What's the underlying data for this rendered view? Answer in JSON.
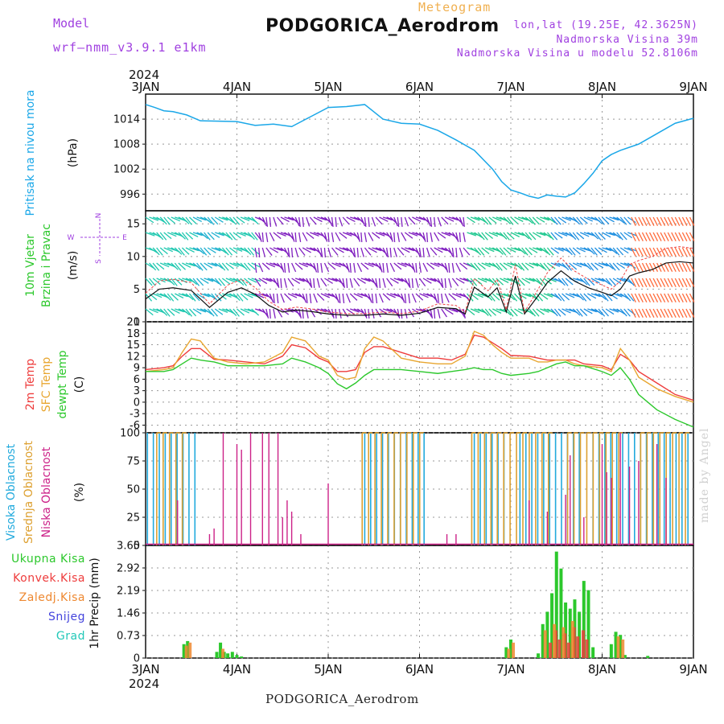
{
  "header": {
    "title": "PODGORICA_Aerodrom",
    "subtitle": "Meteogram",
    "model_label": "Model",
    "model_name": "wrf–nmm_v3.9.1  e1km",
    "coords": "lon,lat (19.25E, 42.3625N)",
    "altitude": "Nadmorska Visina 39m",
    "model_altitude": "Nadmorska Visina u modelu 52.8106m",
    "year_top": "2024",
    "year_bottom": "2024",
    "footer": "PODGORICA_Aerodrom",
    "credit": "made by Angel"
  },
  "colors": {
    "pressure": "#1aa7e8",
    "temp2m": "#ee3c3c",
    "sfc": "#e8a630",
    "dewpt": "#2cc82c",
    "high_cloud": "#22aadd",
    "mid_cloud": "#dda030",
    "low_cloud": "#cc2288",
    "total_precip": "#2cc82c",
    "conv_precip": "#ee3c3c",
    "frozen": "#ee8830",
    "snow": "#4444dd",
    "graupel": "#22c8b8",
    "wind_purple": "#8020c0",
    "wind_teal": "#20c8b0"
  },
  "chart_data": [
    {
      "type": "line",
      "name": "pressure",
      "ylabel": "Pritisak na nivou mora",
      "units": "(hPa)",
      "x_ticks": [
        "3JAN",
        "4JAN",
        "5JAN",
        "6JAN",
        "7JAN",
        "8JAN",
        "9JAN"
      ],
      "yticks": [
        996,
        1002,
        1008,
        1014
      ],
      "ylim": [
        992,
        1020
      ],
      "x": [
        0,
        0.1,
        0.2,
        0.3,
        0.45,
        0.6,
        0.8,
        1.0,
        1.2,
        1.4,
        1.6,
        1.8,
        2.0,
        2.2,
        2.4,
        2.6,
        2.8,
        3.0,
        3.2,
        3.4,
        3.6,
        3.8,
        3.9,
        4.0,
        4.1,
        4.2,
        4.3,
        4.4,
        4.5,
        4.6,
        4.7,
        4.8,
        4.9,
        5.0,
        5.1,
        5.2,
        5.4,
        5.6,
        5.8,
        6.0
      ],
      "values": [
        1017.5,
        1016.8,
        1016,
        1015.8,
        1015,
        1013.6,
        1013.5,
        1013.4,
        1012.5,
        1012.8,
        1012.2,
        1014.5,
        1016.8,
        1017,
        1017.5,
        1014,
        1013,
        1012.8,
        1011.3,
        1009,
        1006.5,
        1002,
        999,
        997,
        996.3,
        995.5,
        995,
        995.8,
        995.5,
        995.3,
        996.3,
        998.5,
        1001,
        1004,
        1005.5,
        1006.5,
        1008,
        1010.5,
        1013,
        1014.2
      ]
    },
    {
      "type": "line",
      "name": "wind",
      "ylabel": "10m Vjetar",
      "ylabel2": "Brzina i Pravac",
      "units": "(m/s)",
      "compass": [
        "N",
        "W",
        "E",
        "S"
      ],
      "yticks": [
        0,
        5,
        10,
        15
      ],
      "ylim": [
        0,
        17
      ],
      "x": [
        0,
        0.15,
        0.3,
        0.5,
        0.7,
        0.9,
        1.05,
        1.2,
        1.35,
        1.5,
        1.65,
        1.8,
        2.0,
        2.2,
        2.4,
        2.6,
        2.8,
        3.0,
        3.2,
        3.4,
        3.5,
        3.6,
        3.75,
        3.85,
        3.95,
        4.05,
        4.15,
        4.3,
        4.4,
        4.55,
        4.7,
        4.85,
        5.0,
        5.1,
        5.2,
        5.3,
        5.4,
        5.55,
        5.7,
        5.85,
        6.0
      ],
      "values": [
        3.5,
        5,
        5.2,
        4.8,
        2.2,
        4.5,
        5.2,
        4.2,
        2.5,
        1.5,
        1.8,
        1.6,
        1.2,
        1,
        1,
        1.2,
        1,
        1.3,
        2.2,
        2,
        1.2,
        5.3,
        3.8,
        5.2,
        1.5,
        7,
        1.2,
        4,
        6,
        7.8,
        6.2,
        5.2,
        4.5,
        4,
        5,
        7,
        7.5,
        8,
        9,
        9.2,
        9
      ]
    },
    {
      "type": "line",
      "name": "temperature",
      "ylabels": [
        "2m Temp",
        "SFC Temp",
        "dewpt Temp"
      ],
      "units": "(C)",
      "yticks": [
        -6,
        -3,
        0,
        3,
        6,
        9,
        12,
        15,
        18,
        21
      ],
      "ylim": [
        -8,
        21
      ],
      "series": [
        {
          "name": "2m Temp",
          "x": [
            0,
            0.2,
            0.3,
            0.4,
            0.5,
            0.6,
            0.75,
            0.9,
            1.1,
            1.3,
            1.5,
            1.6,
            1.75,
            1.9,
            2.0,
            2.1,
            2.2,
            2.3,
            2.4,
            2.5,
            2.6,
            2.8,
            3.0,
            3.2,
            3.35,
            3.5,
            3.6,
            3.7,
            3.8,
            3.9,
            4.0,
            4.2,
            4.3,
            4.4,
            4.5,
            4.6,
            4.7,
            4.8,
            5.0,
            5.1,
            5.2,
            5.3,
            5.4,
            5.6,
            5.8,
            6.0
          ],
          "values": [
            8.5,
            9,
            9.5,
            12,
            14,
            14,
            11.2,
            11,
            10.5,
            10,
            12,
            15,
            14.2,
            11.5,
            10.5,
            8,
            8,
            8.5,
            13,
            14.5,
            14.5,
            13,
            11.5,
            11.5,
            11,
            12.5,
            17.5,
            17,
            15.5,
            14,
            12.2,
            12,
            11.5,
            11,
            11,
            11,
            11,
            10,
            9.5,
            8.5,
            12.5,
            11,
            8,
            5,
            2,
            0.5
          ]
        },
        {
          "name": "SFC Temp",
          "x": [
            0,
            0.2,
            0.3,
            0.4,
            0.5,
            0.6,
            0.75,
            0.9,
            1.1,
            1.3,
            1.5,
            1.6,
            1.75,
            1.9,
            2.0,
            2.1,
            2.2,
            2.3,
            2.4,
            2.5,
            2.6,
            2.8,
            3.0,
            3.2,
            3.35,
            3.5,
            3.6,
            3.7,
            3.8,
            3.9,
            4.0,
            4.2,
            4.3,
            4.4,
            4.5,
            4.6,
            4.7,
            4.8,
            5.0,
            5.1,
            5.2,
            5.3,
            5.4,
            5.6,
            5.8,
            6.0
          ],
          "values": [
            8,
            8.5,
            9,
            13,
            16.5,
            16,
            11.5,
            10.5,
            10,
            10.5,
            13,
            17,
            16,
            12,
            11,
            7,
            6,
            6.5,
            14,
            17,
            16,
            11.5,
            10.5,
            10,
            10,
            12,
            18.5,
            17.5,
            15,
            13,
            11.5,
            11.5,
            10.5,
            10.5,
            11,
            11,
            10,
            9.5,
            9,
            8,
            14,
            11,
            6.5,
            3.5,
            1.5,
            0
          ]
        },
        {
          "name": "dewpt Temp",
          "x": [
            0,
            0.2,
            0.3,
            0.4,
            0.5,
            0.6,
            0.75,
            0.9,
            1.1,
            1.3,
            1.5,
            1.6,
            1.75,
            1.9,
            2.0,
            2.1,
            2.2,
            2.3,
            2.4,
            2.5,
            2.6,
            2.8,
            3.0,
            3.2,
            3.35,
            3.5,
            3.6,
            3.7,
            3.8,
            3.9,
            4.0,
            4.2,
            4.3,
            4.4,
            4.5,
            4.6,
            4.7,
            4.8,
            5.0,
            5.1,
            5.2,
            5.3,
            5.4,
            5.6,
            5.8,
            6.0
          ],
          "values": [
            8,
            8,
            8.5,
            10,
            11.5,
            11,
            10.5,
            9.5,
            9.5,
            9.5,
            10,
            11.5,
            10.5,
            9,
            7.5,
            4.8,
            3.5,
            5,
            7,
            8.5,
            8.5,
            8.5,
            8,
            7.5,
            8,
            8.5,
            9,
            8.5,
            8.5,
            7.5,
            7,
            7.5,
            8,
            9,
            10,
            10.5,
            9.5,
            9.5,
            8,
            7,
            9,
            6,
            2,
            -2,
            -4.5,
            -6.5
          ]
        }
      ]
    },
    {
      "type": "bar",
      "name": "cloud",
      "ylabels": [
        "Visoka Oblacnost",
        "Srednja Oblacnost",
        "Niska Oblacnost"
      ],
      "units": "(%)",
      "yticks": [
        0,
        25,
        50,
        75,
        100
      ],
      "ylim": [
        0,
        100
      ],
      "series": [
        {
          "name": "Visoka Oblacnost",
          "spans": [
            [
              0.02,
              0.6
            ],
            [
              2.4,
              3.08
            ],
            [
              3.6,
              3.95
            ],
            [
              4.1,
              4.8
            ],
            [
              4.9,
              6.0
            ]
          ],
          "values": [
            100,
            100,
            100,
            100,
            100
          ]
        },
        {
          "name": "Srednja Oblacnost",
          "spans": [
            [
              0.1,
              0.45
            ],
            [
              2.35,
              3.0
            ],
            [
              3.55,
              4.45
            ],
            [
              4.6,
              5.2
            ],
            [
              5.4,
              5.95
            ]
          ],
          "values": [
            100,
            100,
            100,
            100,
            100
          ]
        },
        {
          "name": "Niska Oblacnost",
          "x": [
            0.35,
            0.7,
            0.75,
            0.85,
            1.0,
            1.05,
            1.15,
            1.28,
            1.35,
            1.45,
            1.55,
            1.6,
            1.7,
            1.5,
            2.0,
            3.3,
            3.4,
            4.2,
            4.4,
            4.6,
            4.65,
            4.8,
            5.0,
            5.05,
            5.1,
            5.2,
            5.3,
            5.4,
            5.6,
            5.7
          ],
          "values": [
            40,
            10,
            15,
            100,
            90,
            85,
            100,
            100,
            100,
            100,
            40,
            30,
            10,
            25,
            55,
            10,
            10,
            40,
            30,
            45,
            80,
            25,
            90,
            65,
            60,
            100,
            70,
            75,
            90,
            60
          ]
        }
      ]
    },
    {
      "type": "bar",
      "name": "precip",
      "ylabels": [
        "Ukupna Kisa",
        "Konvek.Kisa",
        "Zaledj.Kisa",
        "Snijeg",
        "Grad"
      ],
      "ylabel": "1hr Precip",
      "units": "(mm)",
      "yticks": [
        0,
        0.73,
        1.46,
        2.19,
        2.92,
        3.65
      ],
      "ylim": [
        0,
        3.65
      ],
      "x_ticks": [
        "3JAN",
        "4JAN",
        "5JAN",
        "6JAN",
        "7JAN",
        "8JAN",
        "9JAN"
      ],
      "series": [
        {
          "name": "Ukupna Kisa",
          "x": [
            0.42,
            0.46,
            0.78,
            0.82,
            0.86,
            0.9,
            0.95,
            1.0,
            1.05,
            3.95,
            4.0,
            4.3,
            4.35,
            4.4,
            4.45,
            4.5,
            4.55,
            4.6,
            4.65,
            4.7,
            4.75,
            4.8,
            4.85,
            4.9,
            5.1,
            5.15,
            5.2,
            5.25,
            5.5
          ],
          "values": [
            0.45,
            0.55,
            0.2,
            0.5,
            0.2,
            0.15,
            0.2,
            0.1,
            0.05,
            0.35,
            0.6,
            0.15,
            1.1,
            1.5,
            2.1,
            3.45,
            2.9,
            1.8,
            1.6,
            1.9,
            1.5,
            2.5,
            2.2,
            0.35,
            0.45,
            0.85,
            0.75,
            0.1,
            0.07
          ]
        },
        {
          "name": "Konvek.Kisa",
          "x": [
            4.42,
            4.48,
            4.52,
            4.58,
            4.62,
            4.68,
            4.72,
            4.78,
            4.82
          ],
          "values": [
            0.5,
            0.9,
            0.6,
            0.8,
            0.5,
            1.0,
            0.7,
            0.9,
            0.6
          ]
        },
        {
          "name": "Zaledj.Kisa",
          "x": [
            0.42,
            0.46,
            0.82,
            3.95,
            4.0,
            4.35,
            4.45,
            4.55,
            4.65,
            5.15,
            5.2
          ],
          "values": [
            0.4,
            0.5,
            0.3,
            0.3,
            0.5,
            0.9,
            1.1,
            1.0,
            1.2,
            0.7,
            0.6
          ]
        }
      ]
    }
  ]
}
